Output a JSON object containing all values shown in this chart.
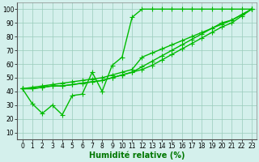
{
  "line1_x": [
    0,
    1,
    2,
    3,
    4,
    5,
    6,
    7,
    8,
    9,
    10,
    11,
    12,
    13,
    14,
    15,
    16,
    17,
    18,
    19,
    20,
    21,
    22,
    23
  ],
  "line1_y": [
    42,
    31,
    24,
    30,
    23,
    37,
    38,
    54,
    40,
    59,
    65,
    94,
    100,
    100,
    100,
    100,
    100,
    100,
    100,
    100,
    100,
    100,
    100,
    100
  ],
  "line2_x": [
    0,
    1,
    2,
    3,
    4,
    5,
    6,
    7,
    8,
    9,
    10,
    11,
    12,
    13,
    14,
    15,
    16,
    17,
    18,
    19,
    20,
    21,
    22,
    23
  ],
  "line2_y": [
    42,
    43,
    44,
    45,
    46,
    47,
    48,
    49,
    50,
    52,
    54,
    56,
    65,
    68,
    71,
    74,
    77,
    80,
    83,
    86,
    89,
    92,
    96,
    100
  ],
  "line3_x": [
    0,
    1,
    2,
    3,
    4,
    5,
    6,
    7,
    8,
    9,
    10,
    11,
    12,
    13,
    14,
    15,
    16,
    17,
    18,
    19,
    20,
    21,
    22,
    23
  ],
  "line3_y": [
    42,
    42,
    43,
    44,
    44,
    45,
    46,
    47,
    48,
    50,
    52,
    54,
    58,
    62,
    66,
    70,
    74,
    78,
    82,
    86,
    90,
    92,
    96,
    100
  ],
  "line4_x": [
    0,
    1,
    2,
    3,
    4,
    5,
    6,
    7,
    8,
    9,
    10,
    11,
    12,
    13,
    14,
    15,
    16,
    17,
    18,
    19,
    20,
    21,
    22,
    23
  ],
  "line4_y": [
    42,
    42,
    43,
    44,
    44,
    45,
    46,
    47,
    48,
    50,
    52,
    54,
    56,
    59,
    63,
    67,
    71,
    75,
    79,
    83,
    87,
    90,
    95,
    100
  ],
  "line_color": "#00bb00",
  "marker": "+",
  "markersize": 4,
  "linewidth": 1.0,
  "bg_color": "#d4f0ec",
  "grid_color": "#99ccbb",
  "xlabel": "Humidité relative (%)",
  "xlabel_color": "#007700",
  "xlabel_fontsize": 7,
  "ylabel_ticks": [
    10,
    20,
    30,
    40,
    50,
    60,
    70,
    80,
    90,
    100
  ],
  "xticks": [
    0,
    1,
    2,
    3,
    4,
    5,
    6,
    7,
    8,
    9,
    10,
    11,
    12,
    13,
    14,
    15,
    16,
    17,
    18,
    19,
    20,
    21,
    22,
    23
  ],
  "xlim": [
    -0.5,
    23.5
  ],
  "ylim": [
    5,
    105
  ],
  "tick_fontsize": 5.5
}
